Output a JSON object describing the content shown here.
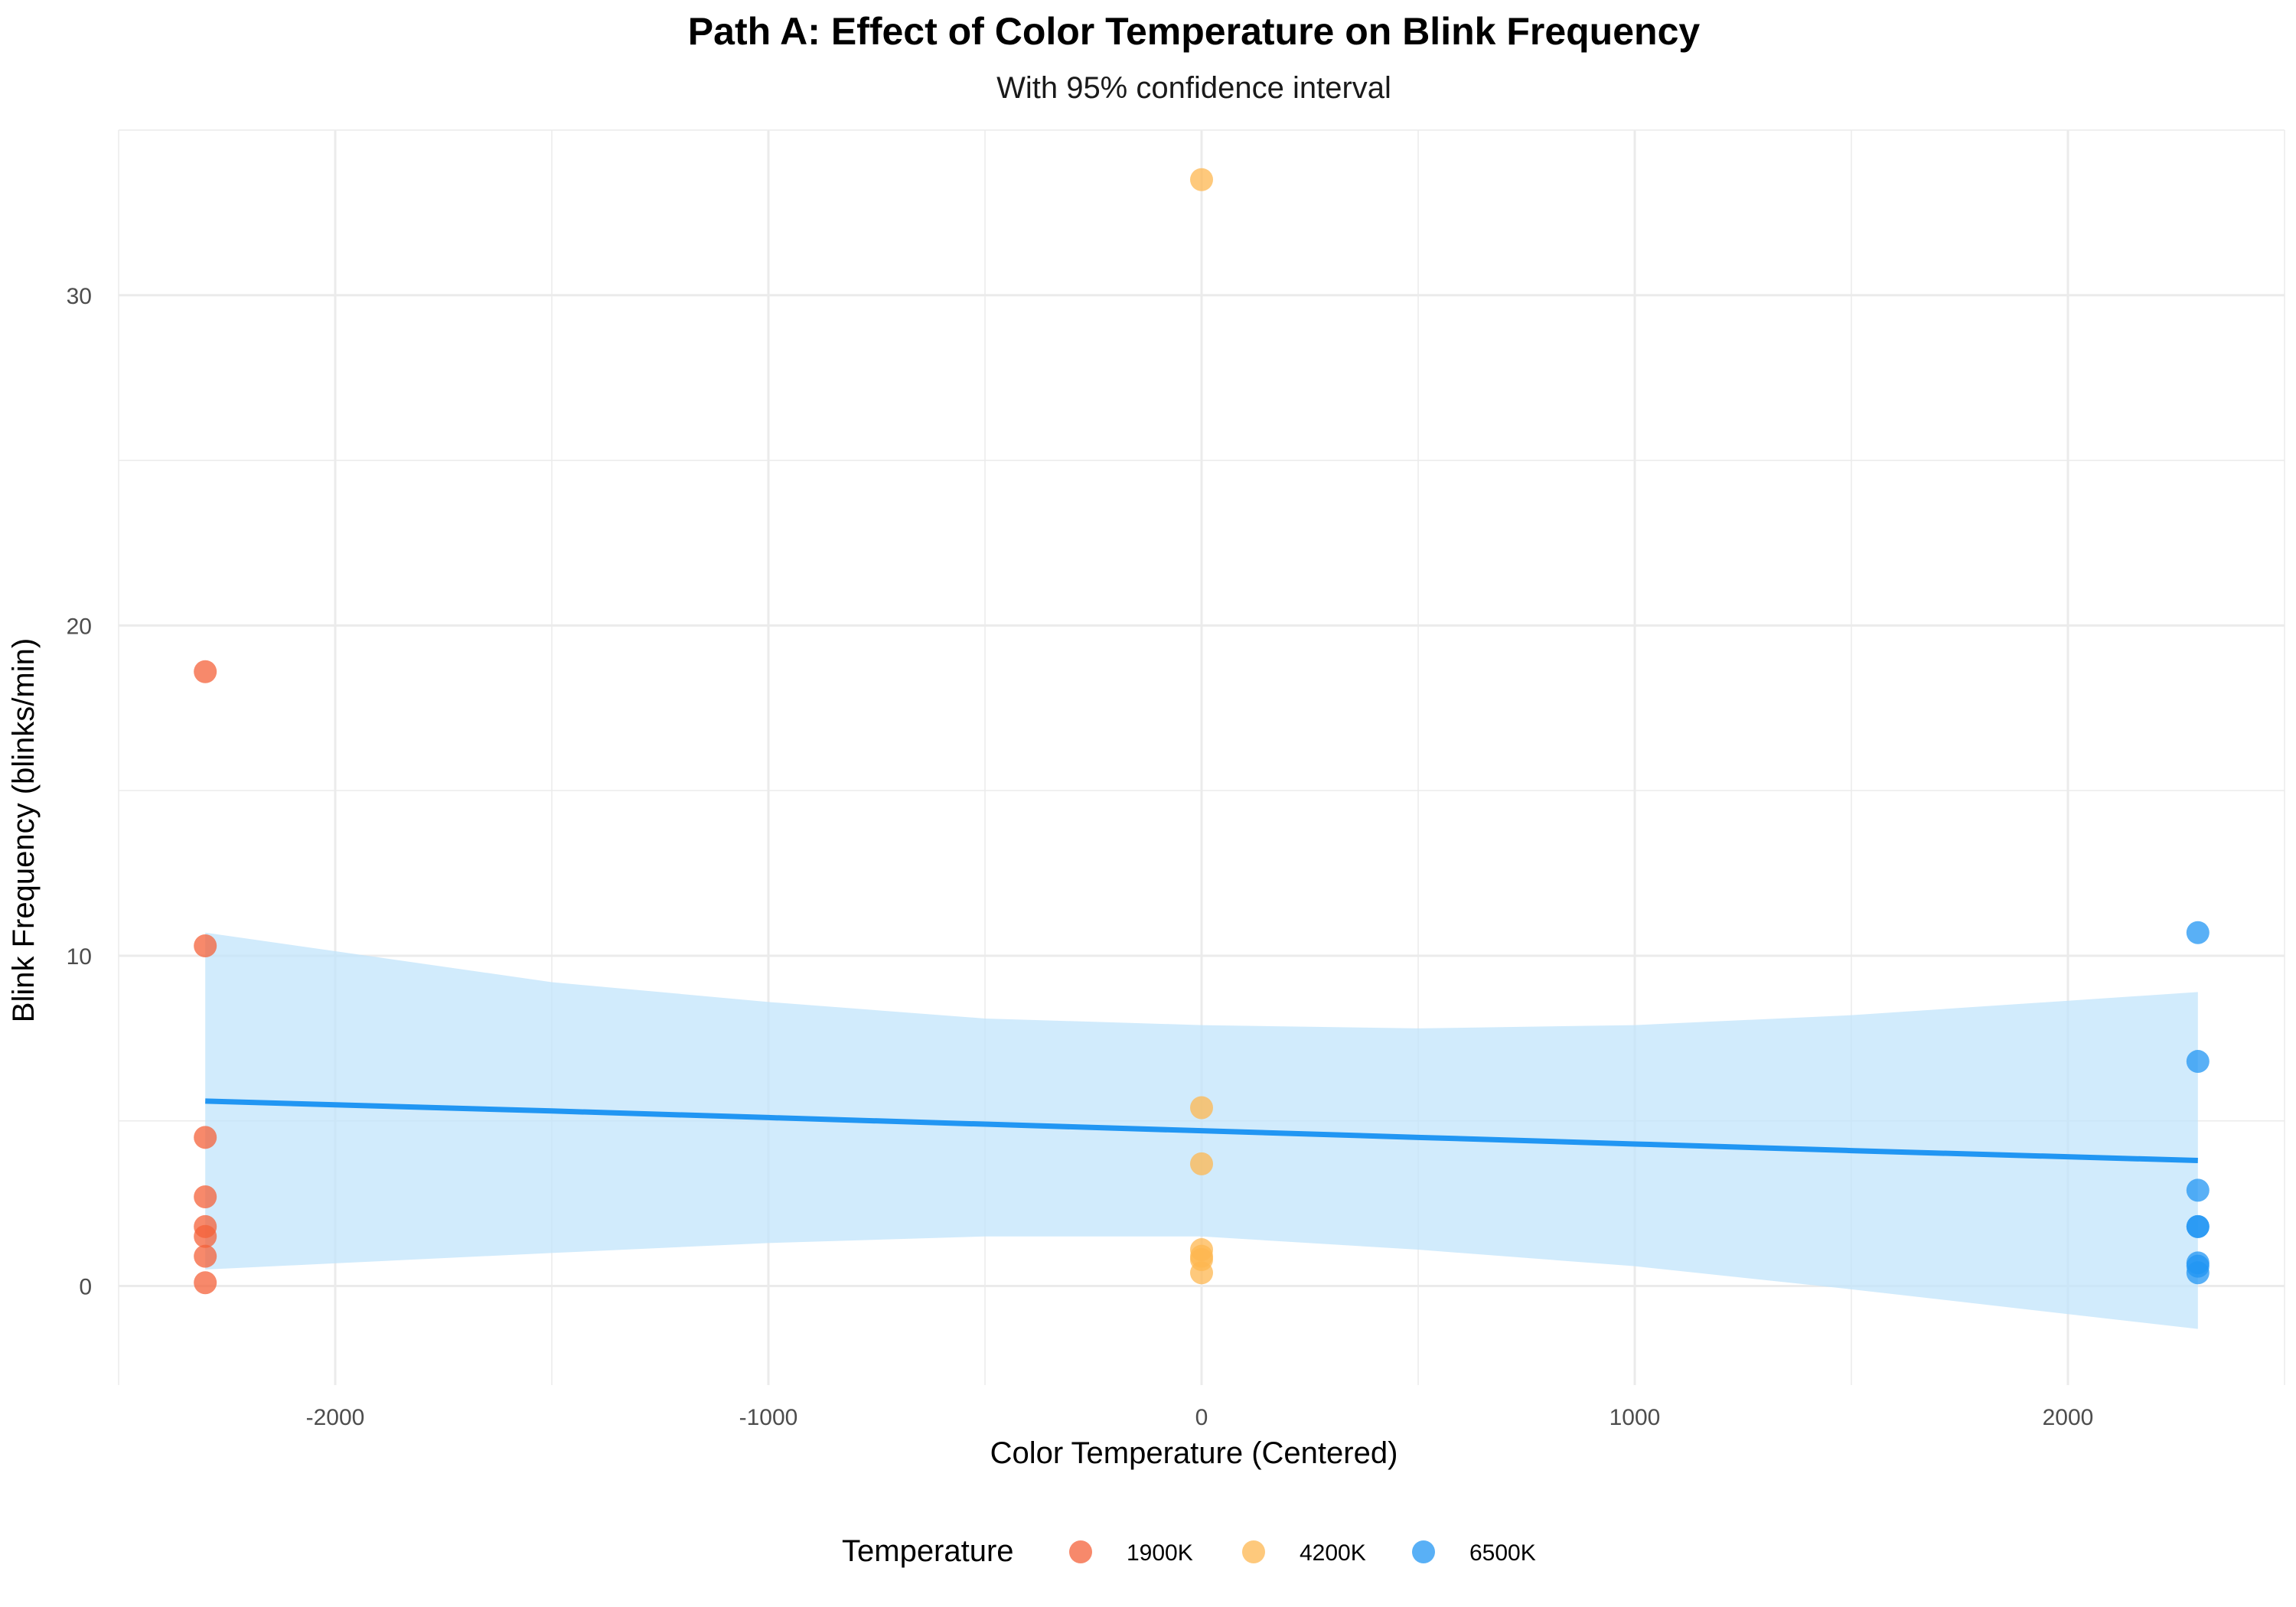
{
  "chart_data": {
    "type": "scatter",
    "title": "Path A: Effect of Color Temperature on Blink Frequency",
    "subtitle": "With 95% confidence interval",
    "xlabel": "Color Temperature (Centered)",
    "ylabel": "Blink Frequency (blinks/min)",
    "xlim": [
      -2500,
      2500
    ],
    "ylim": [
      -3,
      35
    ],
    "x_ticks": [
      -2000,
      -1000,
      0,
      1000,
      2000
    ],
    "y_ticks": [
      0,
      10,
      20,
      30
    ],
    "grid": true,
    "legend": {
      "title": "Temperature",
      "placement": "bottom",
      "entries": [
        {
          "label": "1900K",
          "color": "#F4623A"
        },
        {
          "label": "4200K",
          "color": "#FDB750"
        },
        {
          "label": "6500K",
          "color": "#2196F3"
        }
      ]
    },
    "series": [
      {
        "name": "1900K",
        "color": "#F4623A",
        "points": [
          {
            "x": -2300,
            "y": 18.6
          },
          {
            "x": -2300,
            "y": 10.3
          },
          {
            "x": -2300,
            "y": 4.5
          },
          {
            "x": -2300,
            "y": 2.7
          },
          {
            "x": -2300,
            "y": 1.8
          },
          {
            "x": -2300,
            "y": 1.5
          },
          {
            "x": -2300,
            "y": 0.9
          },
          {
            "x": -2300,
            "y": 0.1
          }
        ]
      },
      {
        "name": "4200K",
        "color": "#FDB750",
        "points": [
          {
            "x": 0,
            "y": 33.5
          },
          {
            "x": 0,
            "y": 5.4
          },
          {
            "x": 0,
            "y": 3.7
          },
          {
            "x": 0,
            "y": 1.1
          },
          {
            "x": 0,
            "y": 0.9
          },
          {
            "x": 0,
            "y": 0.8
          },
          {
            "x": 0,
            "y": 0.4
          }
        ]
      },
      {
        "name": "6500K",
        "color": "#2196F3",
        "points": [
          {
            "x": 2300,
            "y": 10.7
          },
          {
            "x": 2300,
            "y": 6.8
          },
          {
            "x": 2300,
            "y": 2.9
          },
          {
            "x": 2300,
            "y": 1.8
          },
          {
            "x": 2300,
            "y": 1.8
          },
          {
            "x": 2300,
            "y": 0.7
          },
          {
            "x": 2300,
            "y": 0.6
          },
          {
            "x": 2300,
            "y": 0.4
          }
        ]
      }
    ],
    "regression": {
      "color": "#2196F3",
      "band_color": "#BFE3FB",
      "points": [
        {
          "x": -2300,
          "y": 5.6,
          "lower": 0.5,
          "upper": 10.7
        },
        {
          "x": -1500,
          "y": 5.3,
          "lower": 1.0,
          "upper": 9.2
        },
        {
          "x": -1000,
          "y": 5.1,
          "lower": 1.3,
          "upper": 8.6
        },
        {
          "x": -500,
          "y": 4.9,
          "lower": 1.5,
          "upper": 8.1
        },
        {
          "x": 0,
          "y": 4.7,
          "lower": 1.5,
          "upper": 7.9
        },
        {
          "x": 500,
          "y": 4.5,
          "lower": 1.1,
          "upper": 7.8
        },
        {
          "x": 1000,
          "y": 4.3,
          "lower": 0.6,
          "upper": 7.9
        },
        {
          "x": 1500,
          "y": 4.1,
          "lower": -0.1,
          "upper": 8.2
        },
        {
          "x": 2300,
          "y": 3.8,
          "lower": -1.3,
          "upper": 8.9
        }
      ]
    }
  }
}
